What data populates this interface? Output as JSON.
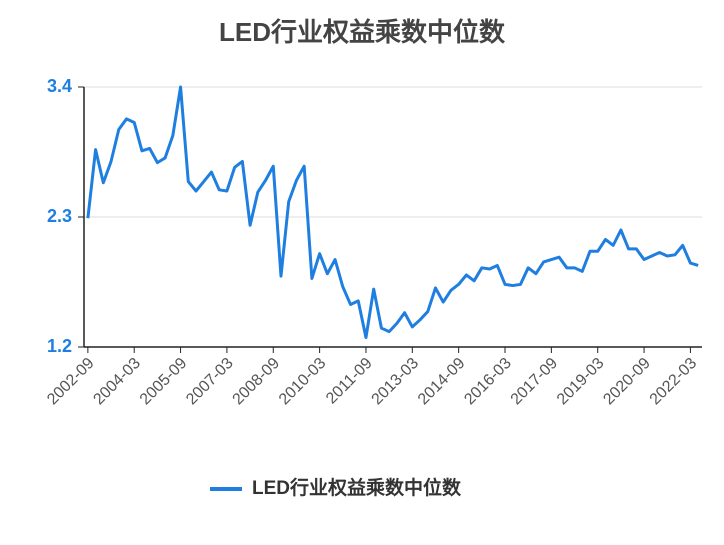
{
  "chart_data": {
    "type": "line",
    "title": "LED行业权益乘数中位数",
    "categories": [
      "2002-09",
      null,
      null,
      null,
      null,
      null,
      "2004-03",
      null,
      null,
      null,
      null,
      null,
      "2005-09",
      null,
      null,
      null,
      null,
      null,
      "2007-03",
      null,
      null,
      null,
      null,
      null,
      "2008-09",
      null,
      null,
      null,
      null,
      null,
      "2010-03",
      null,
      null,
      null,
      null,
      null,
      "2011-09",
      null,
      null,
      null,
      null,
      null,
      "2013-03",
      null,
      null,
      null,
      null,
      null,
      "2014-09",
      null,
      null,
      null,
      null,
      null,
      "2016-03",
      null,
      null,
      null,
      null,
      null,
      "2017-09",
      null,
      null,
      null,
      null,
      null,
      "2019-03",
      null,
      null,
      null,
      null,
      null,
      "2020-09",
      null,
      null,
      null,
      null,
      null,
      "2022-03",
      null
    ],
    "series": [
      {
        "name": "LED行业权益乘数中位数",
        "color": "#1e7fe0",
        "values": [
          2.29,
          2.87,
          2.59,
          2.77,
          3.04,
          3.13,
          3.1,
          2.86,
          2.88,
          2.76,
          2.8,
          2.99,
          3.4,
          2.6,
          2.52,
          2.6,
          2.68,
          2.53,
          2.52,
          2.72,
          2.77,
          2.23,
          2.51,
          2.61,
          2.73,
          1.8,
          2.43,
          2.61,
          2.73,
          1.78,
          1.99,
          1.82,
          1.94,
          1.71,
          1.56,
          1.59,
          1.28,
          1.69,
          1.36,
          1.33,
          1.4,
          1.49,
          1.37,
          1.43,
          1.5,
          1.7,
          1.58,
          1.68,
          1.73,
          1.81,
          1.76,
          1.87,
          1.86,
          1.89,
          1.73,
          1.72,
          1.73,
          1.87,
          1.82,
          1.92,
          1.94,
          1.96,
          1.87,
          1.87,
          1.84,
          2.01,
          2.01,
          2.11,
          2.06,
          2.19,
          2.03,
          2.03,
          1.94,
          1.97,
          2.0,
          1.97,
          1.98,
          2.06,
          1.91,
          1.89
        ]
      }
    ],
    "ylim": [
      1.2,
      3.4
    ],
    "yticks": [
      1.2,
      2.3,
      3.4
    ],
    "grid": true
  }
}
